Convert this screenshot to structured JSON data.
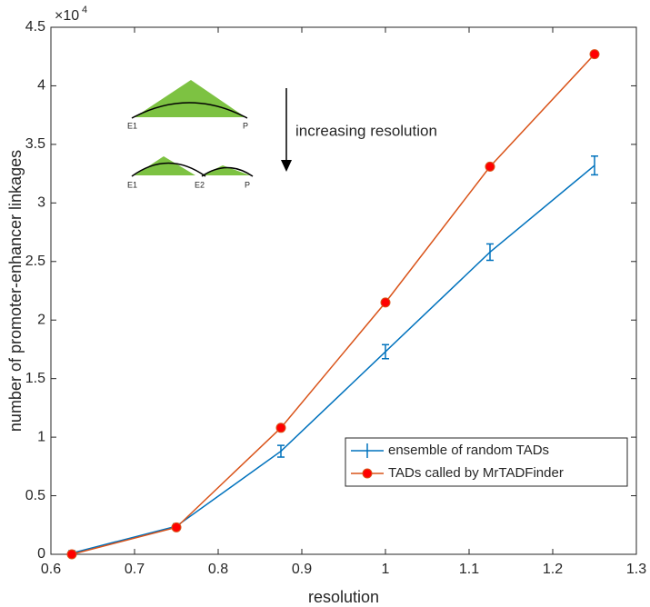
{
  "chart_data": {
    "type": "line",
    "xlabel": "resolution",
    "ylabel": "number of promoter-enhancer linkages",
    "y_multiplier": "×10",
    "y_multiplier_exponent": "4",
    "x": [
      0.625,
      0.75,
      0.875,
      1.0,
      1.125,
      1.25
    ],
    "series": [
      {
        "name": "ensemble of random TADs",
        "color": "#0072bd",
        "values": [
          0.01,
          0.24,
          0.88,
          1.73,
          2.58,
          3.32
        ],
        "errors": [
          0.02,
          0.02,
          0.05,
          0.06,
          0.07,
          0.08
        ]
      },
      {
        "name": "TADs called by MrTADFinder",
        "color": "#d95319",
        "marker_color": "#ff0000",
        "values": [
          0.0,
          0.23,
          1.08,
          2.15,
          3.31,
          4.27
        ]
      }
    ],
    "xlim": [
      0.6,
      1.3
    ],
    "xticks": [
      0.6,
      0.7,
      0.8,
      0.9,
      1,
      1.1,
      1.2,
      1.3
    ],
    "ylim": [
      0,
      4.5
    ],
    "yticks": [
      0,
      0.5,
      1,
      1.5,
      2,
      2.5,
      3,
      3.5,
      4,
      4.5
    ],
    "legend": "lower right",
    "annotations": [
      "increasing resolution"
    ],
    "inset_labels": [
      "E1",
      "P",
      "E1",
      "E2",
      "P"
    ]
  }
}
